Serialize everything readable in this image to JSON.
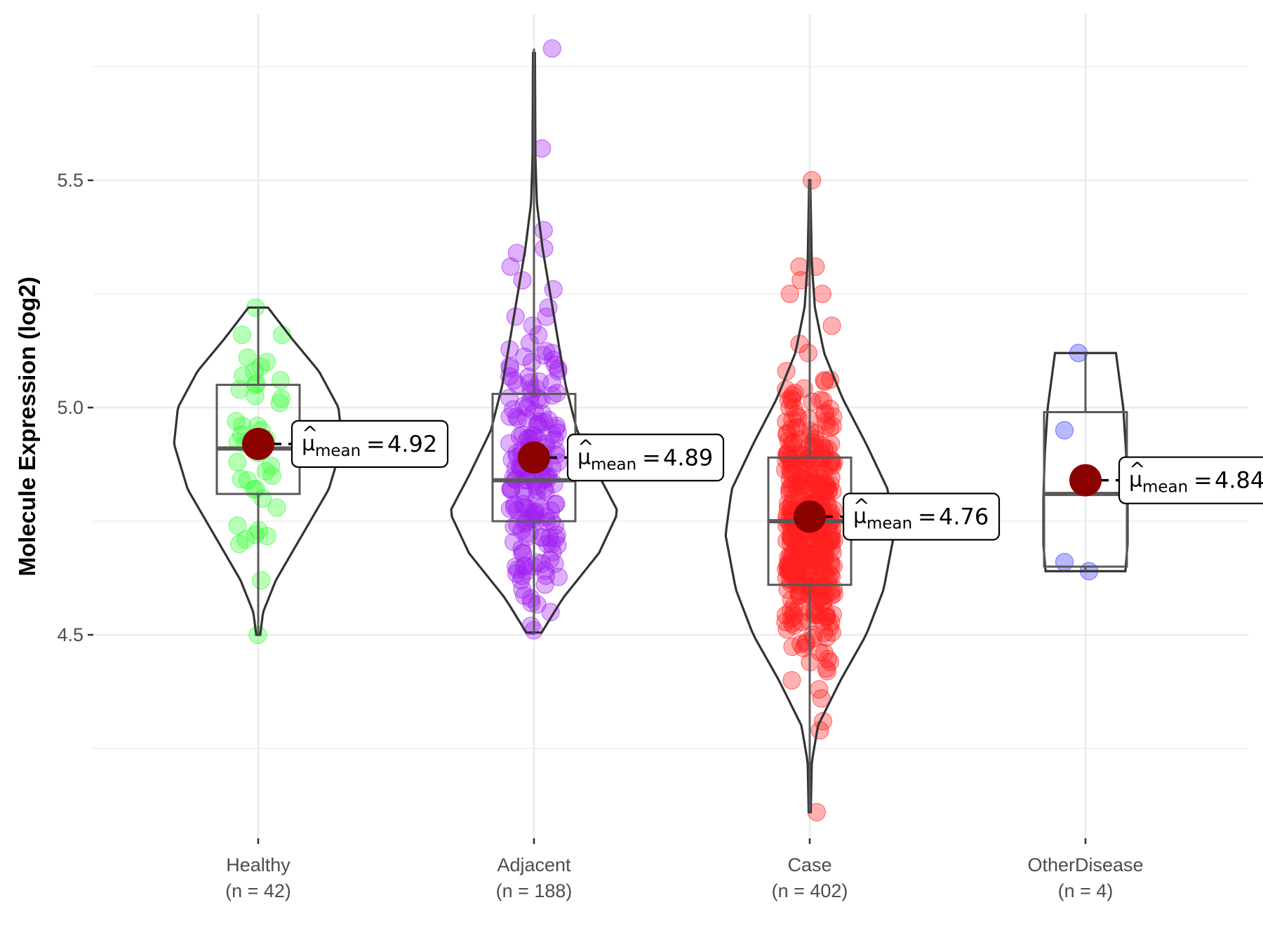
{
  "chart_data": {
    "type": "violin",
    "title": "",
    "xlabel": "",
    "ylabel": "Molecule Expression (log2)",
    "ylim": [
      4.07,
      5.83
    ],
    "yticks": [
      4.5,
      5.0,
      5.5
    ],
    "ytick_labels": [
      "4.5",
      "5.0",
      "5.5"
    ],
    "minor_gridlines": [
      4.25,
      4.75,
      5.25,
      5.75
    ],
    "grid": true,
    "legend": "none",
    "mean_label_prefix": "μ̂",
    "mean_label_sub": "mean",
    "categories": [
      {
        "name": "Healthy",
        "n_label": "(n = 42)",
        "n": 42,
        "color": "#33ff33",
        "mean": 4.92,
        "mean_label": "4.92",
        "median": 4.91,
        "q1": 4.81,
        "q3": 5.05,
        "min": 4.5,
        "max": 5.22,
        "violin": [
          [
            4.5,
            0.02
          ],
          [
            4.55,
            0.05
          ],
          [
            4.62,
            0.18
          ],
          [
            4.72,
            0.45
          ],
          [
            4.82,
            0.72
          ],
          [
            4.92,
            0.86
          ],
          [
            5.0,
            0.82
          ],
          [
            5.08,
            0.62
          ],
          [
            5.15,
            0.35
          ],
          [
            5.22,
            0.1
          ]
        ],
        "points_sample": [
          4.5,
          4.62,
          4.7,
          4.71,
          4.72,
          4.73,
          4.74,
          4.78,
          4.8,
          4.82,
          4.84,
          4.85,
          4.86,
          4.88,
          4.9,
          4.92,
          4.93,
          4.94,
          4.95,
          4.96,
          4.96,
          4.97,
          5.01,
          5.02,
          5.04,
          5.05,
          5.06,
          5.07,
          5.08,
          5.09,
          5.1,
          5.11,
          5.16,
          5.16,
          5.22
        ]
      },
      {
        "name": "Adjacent",
        "n_label": "(n = 188)",
        "n": 188,
        "color": "#a020f0",
        "mean": 4.89,
        "mean_label": "4.89",
        "median": 4.84,
        "q1": 4.75,
        "q3": 5.03,
        "min": 4.5,
        "max": 5.79,
        "violin": [
          [
            4.505,
            0.08
          ],
          [
            4.58,
            0.3
          ],
          [
            4.68,
            0.68
          ],
          [
            4.77,
            0.88
          ],
          [
            4.85,
            0.68
          ],
          [
            4.95,
            0.45
          ],
          [
            5.05,
            0.33
          ],
          [
            5.15,
            0.25
          ],
          [
            5.25,
            0.17
          ],
          [
            5.35,
            0.09
          ],
          [
            5.45,
            0.03
          ],
          [
            5.55,
            0.015
          ],
          [
            5.78,
            0.01
          ]
        ],
        "points_sample": [
          4.51,
          4.52,
          4.55,
          4.57,
          4.58,
          4.6,
          4.62,
          4.63,
          4.65,
          4.68,
          4.7,
          4.7,
          4.72,
          4.74,
          4.75,
          4.76,
          4.78,
          4.8,
          4.82,
          4.84,
          4.85,
          4.87,
          4.88,
          4.9,
          4.92,
          4.94,
          4.96,
          4.98,
          5.0,
          5.02,
          5.04,
          5.06,
          5.08,
          5.1,
          5.12,
          5.16,
          5.18,
          5.2,
          5.22,
          5.26,
          5.28,
          5.31,
          5.34,
          5.35,
          5.39,
          5.57,
          5.79
        ]
      },
      {
        "name": "Case",
        "n_label": "(n = 402)",
        "n": 402,
        "color": "#ff2020",
        "mean": 4.76,
        "mean_label": "4.76",
        "median": 4.75,
        "q1": 4.61,
        "q3": 4.89,
        "min": 4.11,
        "max": 5.5,
        "violin": [
          [
            4.11,
            0.01
          ],
          [
            4.22,
            0.02
          ],
          [
            4.3,
            0.08
          ],
          [
            4.4,
            0.3
          ],
          [
            4.5,
            0.55
          ],
          [
            4.6,
            0.72
          ],
          [
            4.72,
            0.82
          ],
          [
            4.82,
            0.76
          ],
          [
            4.92,
            0.55
          ],
          [
            5.02,
            0.32
          ],
          [
            5.12,
            0.14
          ],
          [
            5.22,
            0.05
          ],
          [
            5.32,
            0.02
          ],
          [
            5.5,
            0.005
          ]
        ],
        "points_sample": [
          4.11,
          4.29,
          4.31,
          4.36,
          4.38,
          4.4,
          4.42,
          4.44,
          4.46,
          4.48,
          4.5,
          4.52,
          4.54,
          4.56,
          4.58,
          4.6,
          4.62,
          4.64,
          4.66,
          4.68,
          4.7,
          4.72,
          4.74,
          4.76,
          4.78,
          4.8,
          4.82,
          4.84,
          4.86,
          4.88,
          4.9,
          4.92,
          4.94,
          4.96,
          4.98,
          5.0,
          5.02,
          5.04,
          5.06,
          5.08,
          5.12,
          5.14,
          5.18,
          5.25,
          5.25,
          5.28,
          5.31,
          5.31,
          5.5
        ]
      },
      {
        "name": "OtherDisease",
        "n_label": "(n = 4)",
        "n": 4,
        "color": "#3333ff",
        "mean": 4.84,
        "mean_label": "4.84",
        "median": 4.81,
        "q1": 4.65,
        "q3": 4.99,
        "min": 4.64,
        "max": 5.12,
        "violin": [
          [
            4.64,
            0.55
          ],
          [
            4.7,
            0.58
          ],
          [
            4.8,
            0.58
          ],
          [
            4.9,
            0.56
          ],
          [
            5.0,
            0.52
          ],
          [
            5.06,
            0.47
          ],
          [
            5.12,
            0.42
          ]
        ],
        "points": [
          5.12,
          4.95,
          4.66,
          4.64
        ]
      }
    ]
  }
}
